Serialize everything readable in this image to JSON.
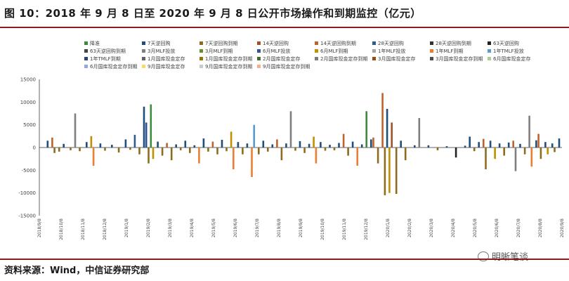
{
  "title": "图 10：2018 年 9 月 8 日至 2020 年 9 月 8 日公开市场操作和到期监控（亿元）",
  "source": "资料来源：Wind，中信证券研究部",
  "watermark": "明晰笔谈",
  "chart_data": {
    "type": "bar",
    "yticks": [
      15000,
      10000,
      5000,
      0,
      -5000,
      -10000,
      -15000
    ],
    "ylim": [
      -15000,
      15000
    ],
    "x_tick_labels": [
      "2018/9/8",
      "2018/10/8",
      "2018/11/8",
      "2018/12/8",
      "2019/1/8",
      "2019/2/8",
      "2019/3/8",
      "2019/4/8",
      "2019/5/8",
      "2019/6/8",
      "2019/7/8",
      "2019/8/8",
      "2019/9/8",
      "2019/10/8",
      "2019/11/8",
      "2019/12/8",
      "2020/1/8",
      "2020/2/8",
      "2020/3/8",
      "2020/4/8",
      "2020/5/8",
      "2020/6/8",
      "2020/7/8",
      "2020/8/8",
      "2020/9/8"
    ],
    "legend_placement": "top",
    "series": [
      {
        "name": "降准",
        "color": "#3f8a3f"
      },
      {
        "name": "7天逆回购",
        "color": "#1f4e79"
      },
      {
        "name": "7天逆回购到期",
        "color": "#8c6d1f"
      },
      {
        "name": "14天逆回购",
        "color": "#a0522d"
      },
      {
        "name": "14天逆回购到期",
        "color": "#c0622d"
      },
      {
        "name": "28天逆回购",
        "color": "#2e5d8c"
      },
      {
        "name": "28天逆回购到期",
        "color": "#333333"
      },
      {
        "name": "63天逆回购",
        "color": "#222222"
      },
      {
        "name": "63天逆回购到期",
        "color": "#444444"
      },
      {
        "name": "3月MLF投放",
        "color": "#7f7f7f"
      },
      {
        "name": "3月MLF到期",
        "color": "#6b8e23"
      },
      {
        "name": "6月MLF投放",
        "color": "#2f5597"
      },
      {
        "name": "6月MLF到期",
        "color": "#bf9000"
      },
      {
        "name": "1年MLF投放",
        "color": "#a5a5a5"
      },
      {
        "name": "1年MLF到期",
        "color": "#ed7d31"
      },
      {
        "name": "1年TMLF投放",
        "color": "#5b9bd5"
      },
      {
        "name": "1年TMLF到期",
        "color": "#264478"
      },
      {
        "name": "1月国库现金定存",
        "color": "#636363"
      },
      {
        "name": "1月国库现金定存到期",
        "color": "#997300"
      },
      {
        "name": "2月国库现金定存",
        "color": "#43682b"
      },
      {
        "name": "2月国库现金定存到期",
        "color": "#7c7c7c"
      },
      {
        "name": "3月国库现金定存",
        "color": "#9e480e"
      },
      {
        "name": "3月国库现金定存到期",
        "color": "#4e4e4e"
      },
      {
        "name": "6月国库现金定存",
        "color": "#a9d18e"
      },
      {
        "name": "6月国库现金定存到期",
        "color": "#8faadc"
      },
      {
        "name": "9月国库现金定存",
        "color": "#ffd966"
      },
      {
        "name": "9月国库现金定存到期",
        "color": "#c9c9c9"
      },
      {
        "name": "9月国库现金定存到期",
        "color": "#f4b183"
      }
    ],
    "bars": [
      {
        "x": 2,
        "v": 1500,
        "c": 1
      },
      {
        "x": 4,
        "v": 2200,
        "c": 4
      },
      {
        "x": 5,
        "v": -1200,
        "c": 2
      },
      {
        "x": 7,
        "v": -900,
        "c": 2
      },
      {
        "x": 9,
        "v": 800,
        "c": 1
      },
      {
        "x": 12,
        "v": -600,
        "c": 2
      },
      {
        "x": 14,
        "v": 7500,
        "c": 9
      },
      {
        "x": 16,
        "v": -800,
        "c": 2
      },
      {
        "x": 19,
        "v": 1200,
        "c": 1
      },
      {
        "x": 21,
        "v": 2500,
        "c": 12
      },
      {
        "x": 22,
        "v": -4000,
        "c": 14
      },
      {
        "x": 25,
        "v": 900,
        "c": 1
      },
      {
        "x": 27,
        "v": -700,
        "c": 2
      },
      {
        "x": 30,
        "v": 600,
        "c": 1
      },
      {
        "x": 33,
        "v": -1100,
        "c": 2
      },
      {
        "x": 36,
        "v": 1800,
        "c": 1
      },
      {
        "x": 38,
        "v": -500,
        "c": 2
      },
      {
        "x": 40,
        "v": 2800,
        "c": 5
      },
      {
        "x": 42,
        "v": -1500,
        "c": 2
      },
      {
        "x": 44,
        "v": 9000,
        "c": 1
      },
      {
        "x": 45,
        "v": 5500,
        "c": 11
      },
      {
        "x": 46,
        "v": -3500,
        "c": 2
      },
      {
        "x": 47,
        "v": 9500,
        "c": 0
      },
      {
        "x": 48,
        "v": -2500,
        "c": 12
      },
      {
        "x": 50,
        "v": 1300,
        "c": 1
      },
      {
        "x": 52,
        "v": -1800,
        "c": 2
      },
      {
        "x": 54,
        "v": 1000,
        "c": 4
      },
      {
        "x": 56,
        "v": -2800,
        "c": 2
      },
      {
        "x": 58,
        "v": 700,
        "c": 1
      },
      {
        "x": 60,
        "v": -600,
        "c": 2
      },
      {
        "x": 62,
        "v": 1500,
        "c": 1
      },
      {
        "x": 64,
        "v": -1200,
        "c": 2
      },
      {
        "x": 66,
        "v": 500,
        "c": 1
      },
      {
        "x": 68,
        "v": -3500,
        "c": 14
      },
      {
        "x": 70,
        "v": 2000,
        "c": 1
      },
      {
        "x": 72,
        "v": -900,
        "c": 2
      },
      {
        "x": 74,
        "v": 1300,
        "c": 4
      },
      {
        "x": 76,
        "v": -1500,
        "c": 2
      },
      {
        "x": 78,
        "v": 1700,
        "c": 1
      },
      {
        "x": 80,
        "v": -800,
        "c": 2
      },
      {
        "x": 82,
        "v": 3500,
        "c": 12
      },
      {
        "x": 83,
        "v": -4800,
        "c": 14
      },
      {
        "x": 85,
        "v": 1200,
        "c": 1
      },
      {
        "x": 87,
        "v": -1500,
        "c": 2
      },
      {
        "x": 89,
        "v": 900,
        "c": 1
      },
      {
        "x": 91,
        "v": -6500,
        "c": 14
      },
      {
        "x": 92,
        "v": 5000,
        "c": 15
      },
      {
        "x": 94,
        "v": -1500,
        "c": 2
      },
      {
        "x": 96,
        "v": 1500,
        "c": 1
      },
      {
        "x": 98,
        "v": -900,
        "c": 2
      },
      {
        "x": 100,
        "v": 700,
        "c": 1
      },
      {
        "x": 102,
        "v": 1800,
        "c": 4
      },
      {
        "x": 104,
        "v": -2800,
        "c": 2
      },
      {
        "x": 106,
        "v": 900,
        "c": 1
      },
      {
        "x": 108,
        "v": 8000,
        "c": 9
      },
      {
        "x": 110,
        "v": -700,
        "c": 2
      },
      {
        "x": 112,
        "v": 1400,
        "c": 1
      },
      {
        "x": 114,
        "v": -1200,
        "c": 2
      },
      {
        "x": 116,
        "v": 800,
        "c": 1
      },
      {
        "x": 118,
        "v": 2400,
        "c": 12
      },
      {
        "x": 119,
        "v": -3500,
        "c": 14
      },
      {
        "x": 121,
        "v": 1200,
        "c": 1
      },
      {
        "x": 123,
        "v": -700,
        "c": 2
      },
      {
        "x": 125,
        "v": 600,
        "c": 1
      },
      {
        "x": 127,
        "v": -600,
        "c": 2
      },
      {
        "x": 129,
        "v": 1000,
        "c": 1
      },
      {
        "x": 131,
        "v": 3000,
        "c": 4
      },
      {
        "x": 133,
        "v": -1800,
        "c": 2
      },
      {
        "x": 135,
        "v": 1300,
        "c": 1
      },
      {
        "x": 137,
        "v": -4000,
        "c": 14
      },
      {
        "x": 139,
        "v": 700,
        "c": 1
      },
      {
        "x": 141,
        "v": 8000,
        "c": 0
      },
      {
        "x": 143,
        "v": 1800,
        "c": 1
      },
      {
        "x": 144,
        "v": 2200,
        "c": 4
      },
      {
        "x": 146,
        "v": -3500,
        "c": 2
      },
      {
        "x": 148,
        "v": 12000,
        "c": 4
      },
      {
        "x": 149,
        "v": -10500,
        "c": 2
      },
      {
        "x": 150,
        "v": 8500,
        "c": 1
      },
      {
        "x": 151,
        "v": -10000,
        "c": 12
      },
      {
        "x": 152,
        "v": 5500,
        "c": 3
      },
      {
        "x": 154,
        "v": -10200,
        "c": 2
      },
      {
        "x": 156,
        "v": 1500,
        "c": 1
      },
      {
        "x": 158,
        "v": -2800,
        "c": 2
      },
      {
        "x": 162,
        "v": 500,
        "c": 1
      },
      {
        "x": 164,
        "v": 6500,
        "c": 9
      },
      {
        "x": 168,
        "v": 500,
        "c": 1
      },
      {
        "x": 172,
        "v": -600,
        "c": 2
      },
      {
        "x": 176,
        "v": 300,
        "c": 1
      },
      {
        "x": 180,
        "v": -2200,
        "c": 7
      },
      {
        "x": 184,
        "v": 400,
        "c": 1
      },
      {
        "x": 186,
        "v": 2400,
        "c": 1
      },
      {
        "x": 188,
        "v": -800,
        "c": 2
      },
      {
        "x": 190,
        "v": 1200,
        "c": 1
      },
      {
        "x": 192,
        "v": 1900,
        "c": 4
      },
      {
        "x": 193,
        "v": -4800,
        "c": 2
      },
      {
        "x": 195,
        "v": 1500,
        "c": 1
      },
      {
        "x": 197,
        "v": -2500,
        "c": 12
      },
      {
        "x": 199,
        "v": 900,
        "c": 1
      },
      {
        "x": 201,
        "v": -1800,
        "c": 2
      },
      {
        "x": 203,
        "v": 1100,
        "c": 1
      },
      {
        "x": 205,
        "v": 1500,
        "c": 4
      },
      {
        "x": 206,
        "v": -5200,
        "c": 9
      },
      {
        "x": 208,
        "v": 800,
        "c": 1
      },
      {
        "x": 210,
        "v": -1500,
        "c": 2
      },
      {
        "x": 212,
        "v": 7000,
        "c": 9
      },
      {
        "x": 213,
        "v": -4200,
        "c": 14
      },
      {
        "x": 215,
        "v": 1600,
        "c": 1
      },
      {
        "x": 216,
        "v": 3000,
        "c": 4
      },
      {
        "x": 217,
        "v": -2500,
        "c": 2
      },
      {
        "x": 219,
        "v": 1200,
        "c": 1
      },
      {
        "x": 220,
        "v": -1500,
        "c": 12
      },
      {
        "x": 222,
        "v": 900,
        "c": 1
      },
      {
        "x": 223,
        "v": -1000,
        "c": 2
      },
      {
        "x": 225,
        "v": 2000,
        "c": 1
      }
    ]
  }
}
